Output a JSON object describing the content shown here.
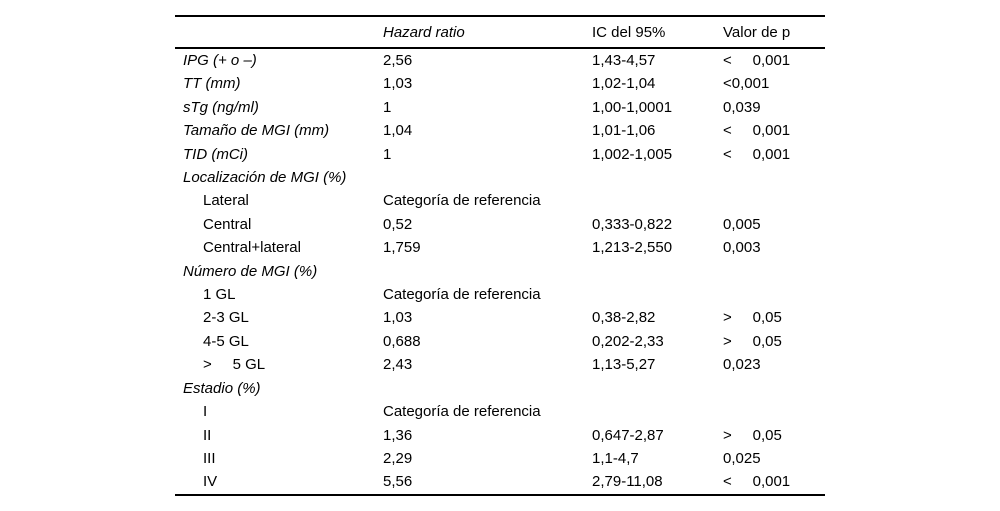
{
  "table": {
    "headers": {
      "variable": "",
      "hazard_ratio": "Hazard ratio",
      "ci": "IC del 95%",
      "p": "Valor de p"
    },
    "rows": [
      {
        "label": "IPG (+ o –)",
        "italic": true,
        "indent": false,
        "hr": "2,56",
        "ci": "1,43-4,57",
        "p": "<     0,001"
      },
      {
        "label": "TT (mm)",
        "italic": true,
        "indent": false,
        "hr": "1,03",
        "ci": "1,02-1,04",
        "p": "<0,001"
      },
      {
        "label": "sTg (ng/ml)",
        "italic": true,
        "indent": false,
        "hr": "1",
        "ci": "1,00-1,0001",
        "p": "0,039"
      },
      {
        "label": "Tamaño de MGI (mm)",
        "italic": true,
        "indent": false,
        "hr": "1,04",
        "ci": "1,01-1,06",
        "p": "<     0,001"
      },
      {
        "label": "TID (mCi)",
        "italic": true,
        "indent": false,
        "hr": "1",
        "ci": "1,002-1,005",
        "p": "<     0,001"
      },
      {
        "label": "Localización de MGI (%)",
        "italic": true,
        "indent": false,
        "hr": "",
        "ci": "",
        "p": ""
      },
      {
        "label": "Lateral",
        "italic": false,
        "indent": true,
        "hr": "Categoría de referencia",
        "ci": "",
        "p": ""
      },
      {
        "label": "Central",
        "italic": false,
        "indent": true,
        "hr": "0,52",
        "ci": "0,333-0,822",
        "p": "0,005"
      },
      {
        "label": "Central+lateral",
        "italic": false,
        "indent": true,
        "hr": "1,759",
        "ci": "1,213-2,550",
        "p": "0,003"
      },
      {
        "label": "Número de MGI (%)",
        "italic": true,
        "indent": false,
        "hr": "",
        "ci": "",
        "p": ""
      },
      {
        "label": "1 GL",
        "italic": false,
        "indent": true,
        "hr": "Categoría de referencia",
        "ci": "",
        "p": ""
      },
      {
        "label": "2-3 GL",
        "italic": false,
        "indent": true,
        "hr": "1,03",
        "ci": "0,38-2,82",
        "p": ">     0,05"
      },
      {
        "label": "4-5 GL",
        "italic": false,
        "indent": true,
        "hr": "0,688",
        "ci": "0,202-2,33",
        "p": ">     0,05"
      },
      {
        "label": ">     5 GL",
        "italic": false,
        "indent": true,
        "hr": "2,43",
        "ci": "1,13-5,27",
        "p": "0,023"
      },
      {
        "label": "Estadio (%)",
        "italic": true,
        "indent": false,
        "hr": "",
        "ci": "",
        "p": ""
      },
      {
        "label": "I",
        "italic": false,
        "indent": true,
        "hr": "Categoría de referencia",
        "ci": "",
        "p": ""
      },
      {
        "label": "II",
        "italic": false,
        "indent": true,
        "hr": "1,36",
        "ci": "0,647-2,87",
        "p": ">     0,05"
      },
      {
        "label": "III",
        "italic": false,
        "indent": true,
        "hr": "2,29",
        "ci": "1,1-4,7",
        "p": "0,025"
      },
      {
        "label": "IV",
        "italic": false,
        "indent": true,
        "hr": "5,56",
        "ci": "2,79-11,08",
        "p": "<     0,001"
      }
    ]
  }
}
